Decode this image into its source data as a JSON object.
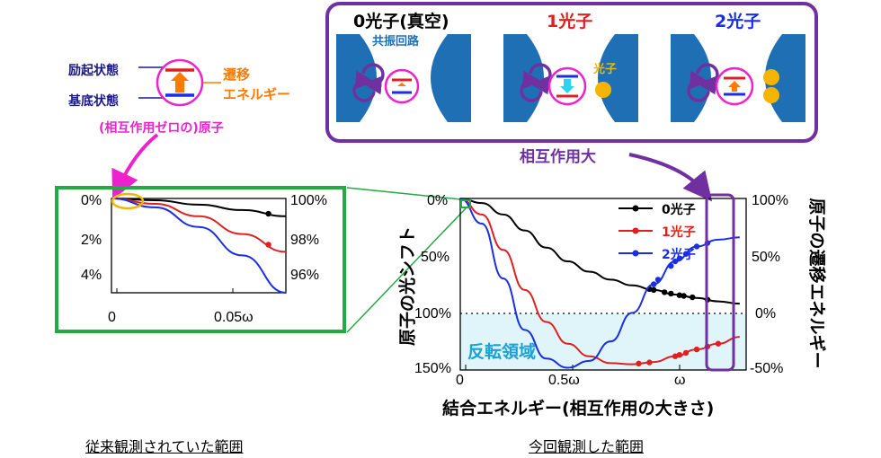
{
  "top_panel": {
    "photon0_title": "0光子(真空)",
    "photon1_title": "1光子",
    "photon2_title": "2光子",
    "resonator_label": "共振回路",
    "photon_label": "光子",
    "interaction_large": "相互作用大"
  },
  "atom_legend": {
    "excited": "励起状態",
    "ground": "基底状態",
    "transition": "遷移",
    "energy": "エネルギー",
    "atom_caption": "(相互作用ゼロの)原子"
  },
  "inset_chart": {
    "y_left_ticks": [
      "0%",
      "2%",
      "4%"
    ],
    "y_right_ticks": [
      "100%",
      "98%",
      "96%"
    ],
    "x_ticks": [
      "0",
      "0.05ω"
    ]
  },
  "main_chart": {
    "y_left_label": "原子の光シフト",
    "y_right_label": "原子の遷移エネルギー",
    "x_label": "結合エネルギー(相互作用の大きさ)",
    "y_left_ticks": [
      "0%",
      "50%",
      "100%",
      "150%"
    ],
    "y_right_ticks": [
      "100%",
      "50%",
      "0%",
      "-50%"
    ],
    "x_ticks": [
      "0",
      "0.5ω",
      "ω"
    ],
    "inversion_label": "反転領域",
    "legend": [
      "0光子",
      "1光子",
      "2光子"
    ]
  },
  "captions": {
    "previous": "従来観測されていた範囲",
    "current": "今回観測した範囲"
  },
  "colors": {
    "photon0": "#000000",
    "photon1": "#e02020",
    "photon2": "#1a2ee6",
    "inset_frame": "#22aa44",
    "highlight": "#7030a0",
    "inversion_fill": "#dff5fa",
    "magenta": "#ee22cc",
    "orange": "#ff7a00",
    "resonator": "#1f6fb5"
  },
  "chart_data": [
    {
      "type": "line",
      "x_label": "",
      "y_label": "",
      "x": [
        0,
        0.02,
        0.04,
        0.06,
        0.08
      ],
      "series": [
        {
          "name": "0光子",
          "values": [
            0,
            0.1,
            0.35,
            0.65,
            1.0
          ]
        },
        {
          "name": "1光子",
          "values": [
            0,
            0.3,
            1.0,
            2.0,
            3.0
          ]
        },
        {
          "name": "2光子",
          "values": [
            0,
            0.5,
            1.6,
            3.2,
            5.3
          ]
        }
      ],
      "ylim": [
        0,
        5.3
      ],
      "xlim": [
        0,
        0.08
      ]
    },
    {
      "type": "line",
      "x_label": "結合エネルギー(相互作用の大きさ)",
      "y_label": "原子の光シフト",
      "x": [
        0,
        0.1,
        0.2,
        0.3,
        0.4,
        0.5,
        0.6,
        0.7,
        0.8,
        0.9,
        1.0,
        1.1,
        1.2,
        1.3
      ],
      "series": [
        {
          "name": "0光子",
          "values": [
            0,
            4,
            14,
            28,
            43,
            55,
            64,
            71,
            76,
            80,
            84,
            87,
            90,
            92
          ]
        },
        {
          "name": "1光子",
          "values": [
            0,
            14,
            45,
            80,
            108,
            127,
            138,
            144,
            145,
            143,
            138,
            132,
            127,
            121
          ]
        },
        {
          "name": "2光子",
          "values": [
            0,
            22,
            70,
            115,
            140,
            148,
            142,
            125,
            100,
            75,
            55,
            42,
            36,
            34
          ]
        }
      ],
      "ylim": [
        150,
        0
      ],
      "xlim": [
        0,
        1.33
      ]
    }
  ]
}
